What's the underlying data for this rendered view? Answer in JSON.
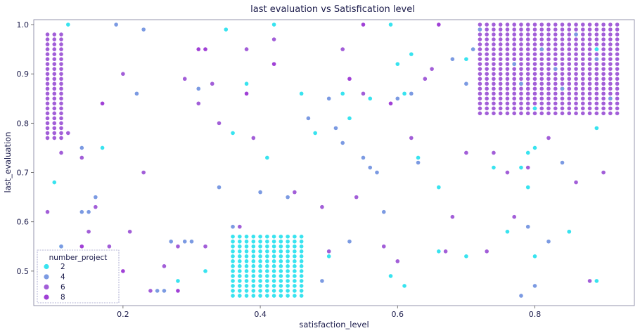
{
  "chart_data": {
    "type": "scatter",
    "title": "last evaluation vs Satisfication level",
    "xlabel": "satisfaction_level",
    "ylabel": "last_evaluation",
    "xlim": [
      0.07,
      0.945
    ],
    "ylim": [
      0.43,
      1.01
    ],
    "xticks": [
      "0.2",
      "0.4",
      "0.6",
      "0.8"
    ],
    "xtick_values": [
      0.2,
      0.4,
      0.6,
      0.8
    ],
    "yticks": [
      "0.5",
      "0.6",
      "0.7",
      "0.8",
      "0.9",
      "1.0"
    ],
    "ytick_values": [
      0.5,
      0.6,
      0.7,
      0.8,
      0.9,
      1.0
    ],
    "grid": false,
    "legend": {
      "title": "number_project",
      "placement": "lower-left",
      "entries": [
        "2",
        "4",
        "6",
        "8"
      ]
    },
    "colors": {
      "2": "#38e3ef",
      "4": "#7b9ae2",
      "6": "#a25ed8",
      "8": "#a040d6"
    },
    "clusters": [
      {
        "series": "6",
        "x_from": 0.09,
        "x_to": 0.11,
        "x_step": 0.01,
        "y_from": 0.77,
        "y_to": 0.98,
        "y_step": 0.01
      },
      {
        "series": "2",
        "x_from": 0.36,
        "x_to": 0.46,
        "x_step": 0.01,
        "y_from": 0.45,
        "y_to": 0.57,
        "y_step": 0.01
      },
      {
        "series": "6",
        "x_from": 0.72,
        "x_to": 0.92,
        "x_step": 0.01,
        "y_from": 0.82,
        "y_to": 1.0,
        "y_step": 0.01
      }
    ],
    "cluster_accents": [
      {
        "series": "4",
        "x": [
          0.72,
          0.77,
          0.78,
          0.81,
          0.83,
          0.84,
          0.86,
          0.89,
          0.91
        ],
        "y": [
          0.99,
          0.92,
          0.88,
          0.95,
          0.91,
          0.87,
          0.98,
          0.93,
          0.85
        ]
      },
      {
        "series": "2",
        "x": [
          0.8,
          0.89
        ],
        "y": [
          0.83,
          0.95
        ]
      }
    ],
    "series": [
      {
        "name": "2",
        "x": [
          0.12,
          0.17,
          0.19,
          0.35,
          0.38,
          0.41,
          0.42,
          0.46,
          0.48,
          0.5,
          0.52,
          0.53,
          0.56,
          0.59,
          0.6,
          0.61,
          0.62,
          0.63,
          0.66,
          0.7,
          0.74,
          0.78,
          0.79,
          0.8,
          0.85,
          0.89,
          0.1,
          0.11,
          0.28,
          0.32,
          0.36,
          0.59,
          0.61,
          0.66,
          0.7,
          0.8,
          0.85,
          0.89,
          0.5,
          0.76,
          0.79
        ],
        "y": [
          1.0,
          0.75,
          0.52,
          0.99,
          0.88,
          0.73,
          1.0,
          0.86,
          0.78,
          0.53,
          0.86,
          0.81,
          0.85,
          1.0,
          0.92,
          0.86,
          0.94,
          0.73,
          0.67,
          0.93,
          0.71,
          0.71,
          0.74,
          0.75,
          0.58,
          0.48,
          0.68,
          0.55,
          0.48,
          0.5,
          0.78,
          0.49,
          0.47,
          0.54,
          0.53,
          0.53,
          0.58,
          0.79,
          0.54,
          0.58,
          0.67
        ]
      },
      {
        "name": "4",
        "x": [
          0.11,
          0.14,
          0.14,
          0.15,
          0.16,
          0.19,
          0.22,
          0.23,
          0.25,
          0.26,
          0.27,
          0.29,
          0.3,
          0.31,
          0.34,
          0.36,
          0.4,
          0.44,
          0.47,
          0.49,
          0.5,
          0.51,
          0.52,
          0.53,
          0.55,
          0.56,
          0.57,
          0.58,
          0.6,
          0.62,
          0.63,
          0.68,
          0.7,
          0.71,
          0.78,
          0.79,
          0.8,
          0.82,
          0.84
        ],
        "y": [
          0.55,
          0.75,
          0.62,
          0.62,
          0.65,
          1.0,
          0.86,
          0.99,
          0.46,
          0.46,
          0.56,
          0.56,
          0.56,
          0.87,
          0.67,
          0.59,
          0.66,
          0.65,
          0.81,
          0.48,
          0.85,
          0.79,
          0.76,
          0.56,
          0.73,
          0.71,
          0.7,
          0.62,
          0.85,
          0.86,
          0.72,
          0.93,
          0.88,
          0.95,
          0.45,
          0.59,
          0.47,
          0.56,
          0.72
        ]
      },
      {
        "name": "6",
        "x": [
          0.09,
          0.11,
          0.12,
          0.13,
          0.14,
          0.15,
          0.16,
          0.18,
          0.2,
          0.21,
          0.23,
          0.24,
          0.26,
          0.28,
          0.29,
          0.31,
          0.32,
          0.33,
          0.34,
          0.37,
          0.38,
          0.39,
          0.42,
          0.45,
          0.49,
          0.5,
          0.52,
          0.54,
          0.55,
          0.58,
          0.6,
          0.62,
          0.64,
          0.65,
          0.67,
          0.68,
          0.7,
          0.73,
          0.74,
          0.76,
          0.77,
          0.79,
          0.82,
          0.86,
          0.88,
          0.9
        ],
        "y": [
          0.62,
          0.74,
          0.78,
          0.52,
          0.73,
          0.58,
          0.63,
          0.55,
          0.9,
          0.58,
          0.7,
          0.46,
          0.51,
          0.55,
          0.89,
          0.84,
          0.55,
          0.88,
          0.8,
          0.59,
          0.95,
          0.77,
          0.97,
          0.66,
          0.63,
          0.54,
          0.95,
          0.65,
          0.86,
          0.55,
          0.52,
          0.77,
          0.89,
          0.91,
          0.54,
          0.61,
          0.74,
          0.54,
          0.74,
          0.7,
          0.61,
          0.71,
          0.77,
          0.68,
          0.48,
          0.7
        ]
      },
      {
        "name": "8",
        "x": [
          0.14,
          0.17,
          0.2,
          0.28,
          0.31,
          0.32,
          0.38,
          0.42,
          0.53,
          0.55,
          0.59,
          0.66
        ],
        "y": [
          0.55,
          0.84,
          0.5,
          0.46,
          0.95,
          0.95,
          0.86,
          0.92,
          0.89,
          1.0,
          0.84,
          1.0
        ]
      }
    ]
  }
}
